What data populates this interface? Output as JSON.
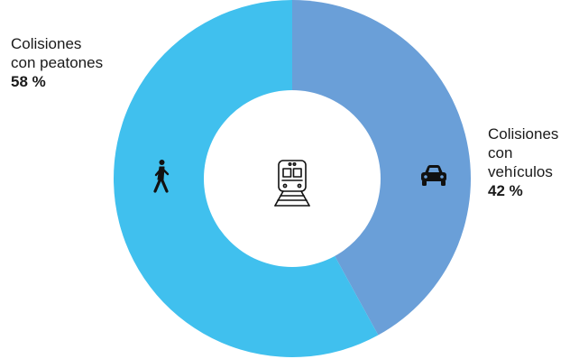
{
  "chart_data": {
    "type": "pie",
    "style": "donut",
    "slices": [
      {
        "label_lines": [
          "Colisiones",
          "con",
          "vehículos"
        ],
        "value_label": "42 %",
        "value": 42,
        "color": "#6a9fd8",
        "icon": "car-icon"
      },
      {
        "label_lines": [
          "Colisiones",
          "con peatones"
        ],
        "value_label": "58 %",
        "value": 58,
        "color": "#40c0ee",
        "icon": "pedestrian-icon"
      }
    ],
    "center_icon": "train-icon",
    "title": "",
    "legend": "none"
  }
}
